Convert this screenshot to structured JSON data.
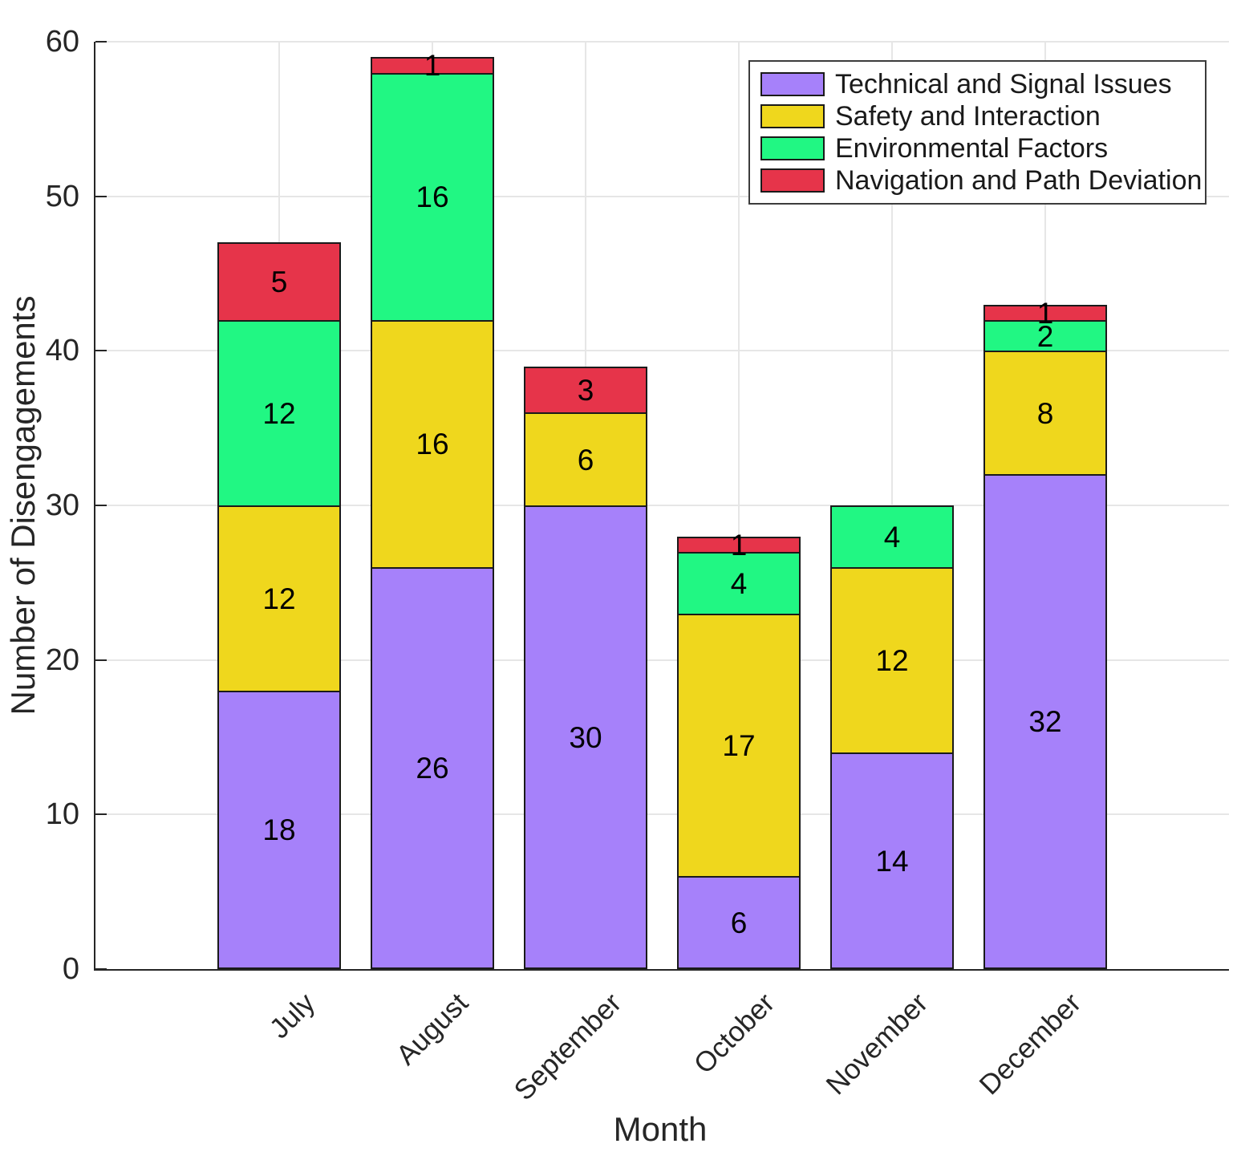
{
  "chart_data": {
    "type": "bar",
    "variant": "stacked-vertical",
    "title": "",
    "xlabel": "Month",
    "ylabel": "Number of Disengagements",
    "categories": [
      "July",
      "August",
      "September",
      "October",
      "November",
      "December"
    ],
    "series": [
      {
        "name": "Technical and Signal Issues",
        "color": "#A681FA",
        "values": [
          18,
          26,
          30,
          6,
          14,
          32
        ]
      },
      {
        "name": "Safety and Interaction",
        "color": "#EFD71D",
        "values": [
          12,
          16,
          6,
          17,
          12,
          8
        ]
      },
      {
        "name": "Environmental Factors",
        "color": "#21F783",
        "values": [
          12,
          16,
          0,
          4,
          4,
          2
        ]
      },
      {
        "name": "Navigation and Path Deviation",
        "color": "#E6344A",
        "values": [
          5,
          1,
          3,
          1,
          0,
          1
        ]
      }
    ],
    "totals": [
      47,
      59,
      39,
      28,
      30,
      43
    ],
    "ylim": [
      0,
      60
    ],
    "yticks": [
      0,
      10,
      20,
      30,
      40,
      50,
      60
    ],
    "grid": true,
    "bar_value_labels": true,
    "legend_position": "top-right"
  },
  "style_colors": {
    "background": "#FFFFFF",
    "axis_line": "#262626",
    "gridline": "#E6E6E6",
    "segment_border": "#1A1A1A",
    "label_text": "#000000"
  }
}
